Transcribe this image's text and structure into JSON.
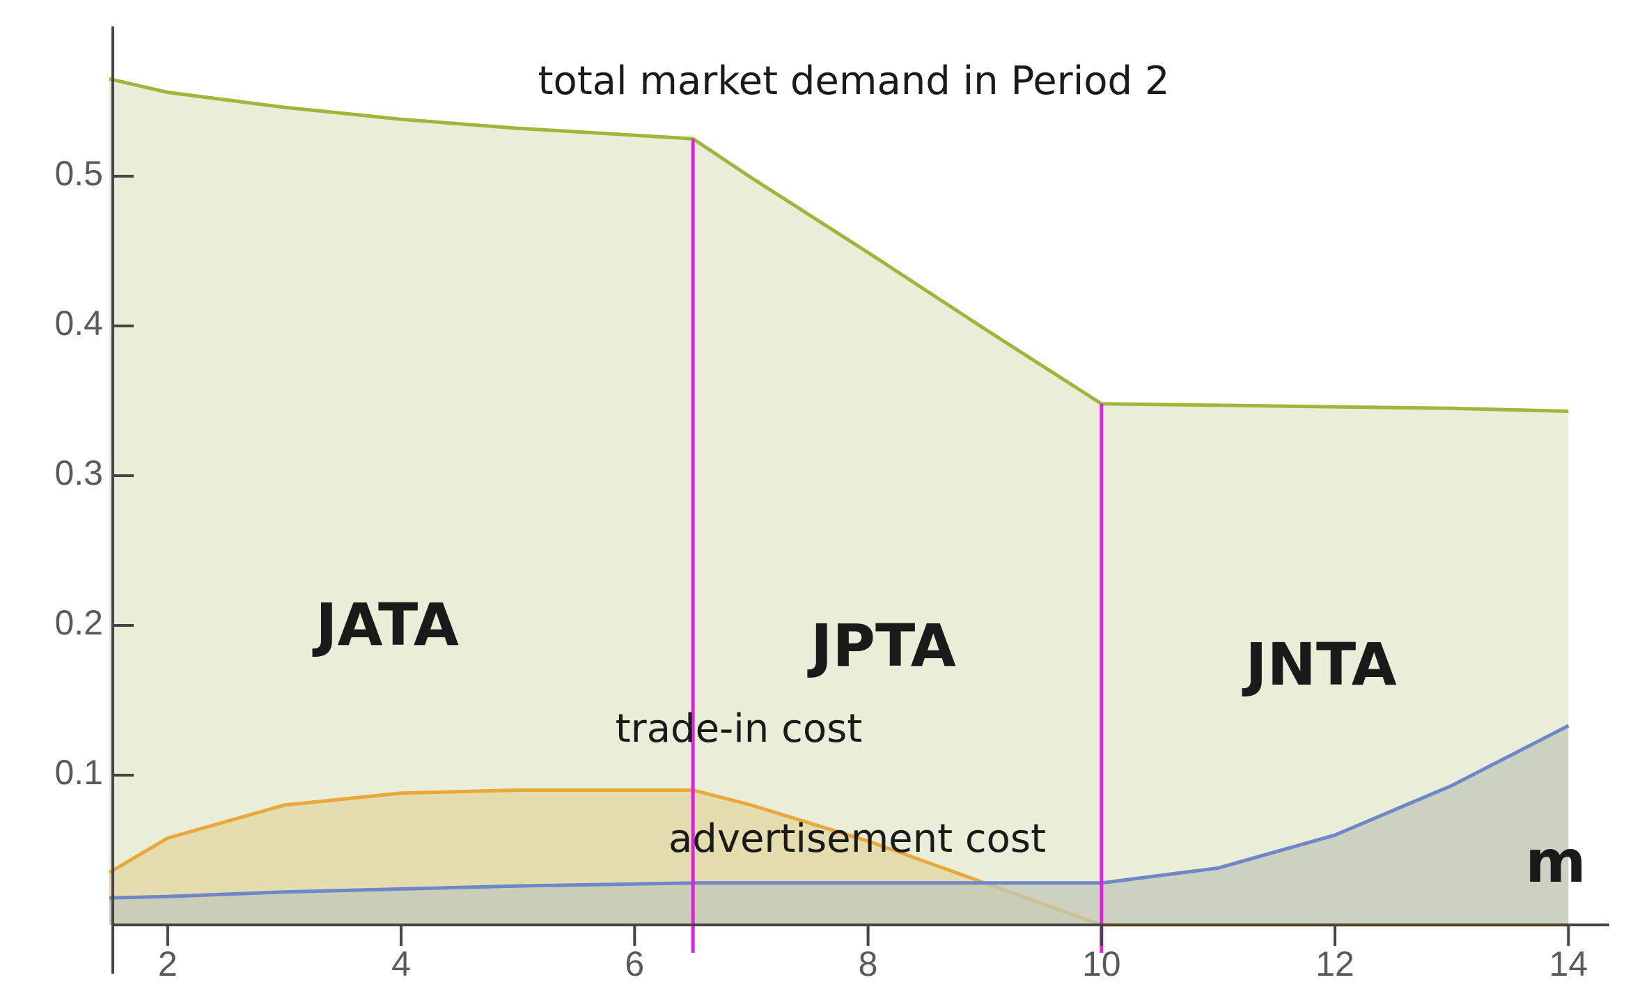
{
  "chart_data": {
    "type": "area",
    "title": "total market demand in Period 2",
    "x_label": "m",
    "x": [
      1.5,
      2,
      3,
      4,
      5,
      6.5,
      7,
      8,
      9,
      10,
      11,
      12,
      13,
      14
    ],
    "series": [
      {
        "name": "total market demand in Period 2",
        "color": "#9bb83c",
        "fill": "#eaeed8",
        "values": [
          0.565,
          0.556,
          0.546,
          0.538,
          0.532,
          0.525,
          0.499,
          0.449,
          0.398,
          0.348,
          0.347,
          0.346,
          0.345,
          0.343
        ]
      },
      {
        "name": "trade-in cost",
        "color": "#e8a93a",
        "fill": "#e2d7a3",
        "values": [
          0.035,
          0.058,
          0.08,
          0.088,
          0.09,
          0.09,
          0.08,
          0.056,
          0.028,
          0,
          0,
          0,
          0,
          0
        ]
      },
      {
        "name": "advertisement cost",
        "color": "#6f86c8",
        "fill": "#c3c8b8",
        "values": [
          0.018,
          0.019,
          0.022,
          0.024,
          0.026,
          0.028,
          0.028,
          0.028,
          0.028,
          0.028,
          0.038,
          0.06,
          0.093,
          0.133
        ]
      }
    ],
    "boundaries": [
      6.5,
      10
    ],
    "boundary_color": "#e020e0",
    "regions": [
      "JATA",
      "JPTA",
      "JNTA"
    ],
    "xlim": [
      1.5,
      14.35
    ],
    "ylim": [
      0,
      0.6
    ],
    "xticks": [
      2,
      4,
      6,
      8,
      10,
      12,
      14
    ],
    "yticks": [
      0.1,
      0.2,
      0.3,
      0.4,
      0.5
    ]
  }
}
